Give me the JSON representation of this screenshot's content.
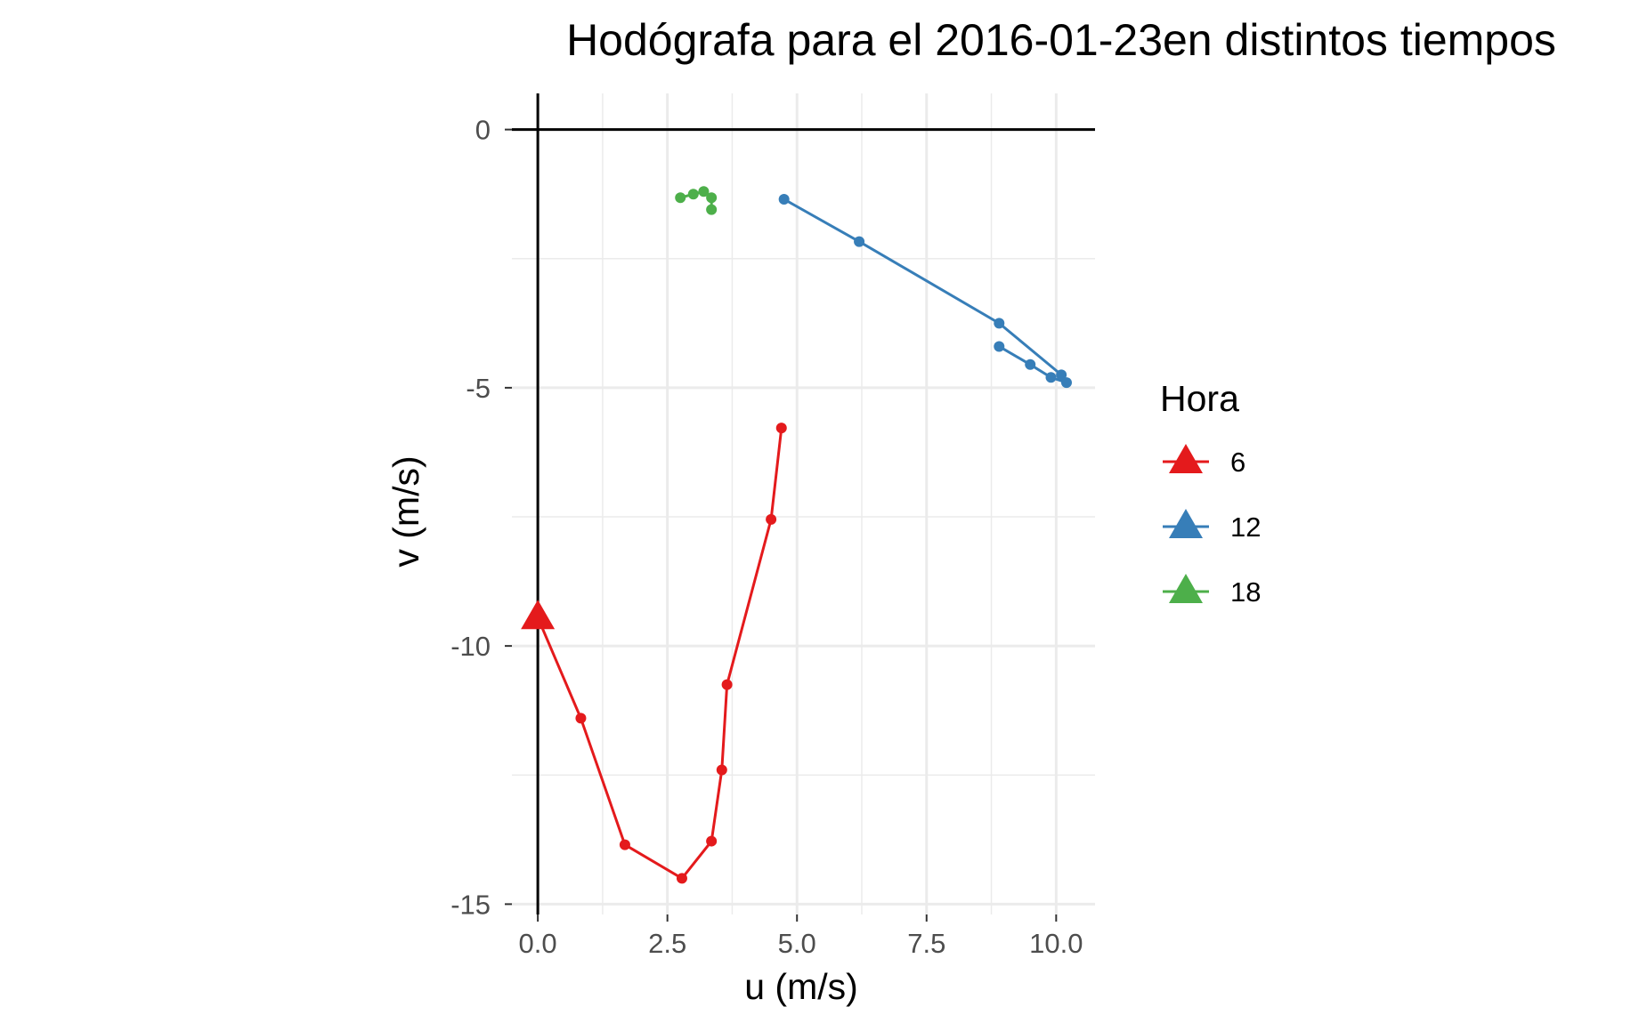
{
  "chart_data": {
    "type": "line",
    "title": "Hodógrafa para el 2016-01-23en distintos tiempos",
    "xlabel": "u (m/s)",
    "ylabel": "v (m/s)",
    "xlim": [
      -0.5,
      10.75
    ],
    "ylim": [
      -15.2,
      0.7
    ],
    "x_ticks": [
      0.0,
      2.5,
      5.0,
      7.5,
      10.0
    ],
    "x_tick_labels": [
      "0.0",
      "2.5",
      "5.0",
      "7.5",
      "10.0"
    ],
    "y_ticks": [
      0,
      -5,
      -10,
      -15
    ],
    "y_tick_labels": [
      "0",
      "-5",
      "-10",
      "-15"
    ],
    "grid": true,
    "zero_lines": true,
    "legend": {
      "title": "Hora",
      "position": "right",
      "entries": [
        {
          "label": "6",
          "color": "#e41a1c"
        },
        {
          "label": "12",
          "color": "#377eb8"
        },
        {
          "label": "18",
          "color": "#4daf4a"
        }
      ]
    },
    "series": [
      {
        "name": "6",
        "color": "#e41a1c",
        "start": {
          "u": 0.0,
          "v": -9.45
        },
        "points": [
          {
            "u": 0.0,
            "v": -9.45
          },
          {
            "u": 0.83,
            "v": -11.4
          },
          {
            "u": 1.68,
            "v": -13.85
          },
          {
            "u": 2.78,
            "v": -14.5
          },
          {
            "u": 3.35,
            "v": -13.78
          },
          {
            "u": 3.55,
            "v": -12.4
          },
          {
            "u": 3.65,
            "v": -10.75
          },
          {
            "u": 4.5,
            "v": -7.55
          },
          {
            "u": 4.7,
            "v": -5.78
          }
        ]
      },
      {
        "name": "12",
        "color": "#377eb8",
        "points": [
          {
            "u": 4.75,
            "v": -1.35
          },
          {
            "u": 6.2,
            "v": -2.17
          },
          {
            "u": 8.9,
            "v": -3.75
          },
          {
            "u": 10.1,
            "v": -4.75
          },
          {
            "u": 10.2,
            "v": -4.9
          },
          {
            "u": 9.9,
            "v": -4.8
          },
          {
            "u": 9.5,
            "v": -4.55
          },
          {
            "u": 8.9,
            "v": -4.2
          }
        ]
      },
      {
        "name": "18",
        "color": "#4daf4a",
        "points": [
          {
            "u": 3.35,
            "v": -1.55
          },
          {
            "u": 3.35,
            "v": -1.32
          },
          {
            "u": 3.2,
            "v": -1.2
          },
          {
            "u": 3.0,
            "v": -1.25
          },
          {
            "u": 2.75,
            "v": -1.32
          }
        ]
      }
    ]
  }
}
